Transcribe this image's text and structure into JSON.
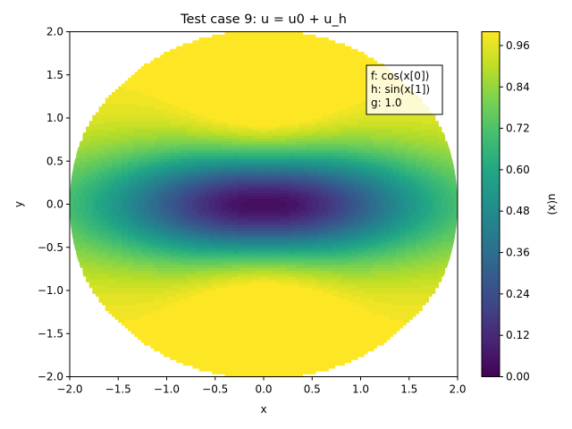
{
  "chart_data": {
    "type": "heatmap",
    "title": "Test case 9: u = u0 + u_h",
    "xlabel": "x",
    "ylabel": "y",
    "xlim": [
      -2.0,
      2.0
    ],
    "ylim": [
      -2.0,
      2.0
    ],
    "x_ticks": [
      "−2.0",
      "−1.5",
      "−1.0",
      "−0.5",
      "0.0",
      "0.5",
      "1.0",
      "1.5",
      "2.0"
    ],
    "y_ticks": [
      "−2.0",
      "−1.5",
      "−1.0",
      "−0.5",
      "0.0",
      "0.5",
      "1.0",
      "1.5",
      "2.0"
    ],
    "x_tick_values": [
      -2.0,
      -1.5,
      -1.0,
      -0.5,
      0.0,
      0.5,
      1.0,
      1.5,
      2.0
    ],
    "y_tick_values": [
      -2.0,
      -1.5,
      -1.0,
      -0.5,
      0.0,
      0.5,
      1.0,
      1.5,
      2.0
    ],
    "domain": "disk of radius 2 centered at origin",
    "colormap": "viridis",
    "colorbar": {
      "label": "u(x)",
      "range": [
        0.0,
        1.0
      ],
      "ticks": [
        "0.00",
        "0.12",
        "0.24",
        "0.36",
        "0.48",
        "0.60",
        "0.72",
        "0.84",
        "0.96"
      ],
      "tick_values": [
        0.0,
        0.12,
        0.24,
        0.36,
        0.48,
        0.6,
        0.72,
        0.84,
        0.96
      ]
    },
    "annotation": [
      "f: cos(x[0])",
      "h: sin(x[1])",
      "g: 1.0"
    ],
    "grid": false
  }
}
